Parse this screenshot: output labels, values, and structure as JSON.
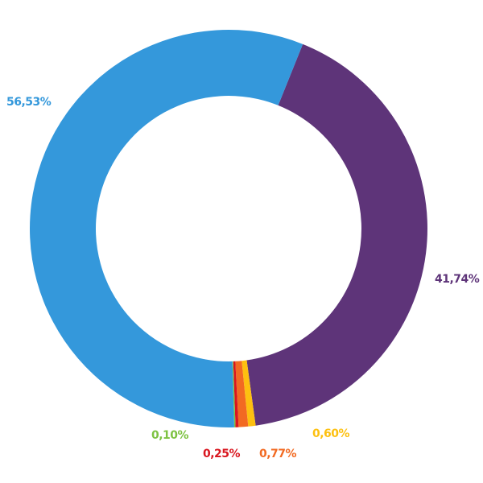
{
  "chart_data": {
    "type": "donut",
    "categories": [
      null,
      null,
      null,
      null,
      null,
      null
    ],
    "values": [
      41.74,
      0.6,
      0.77,
      0.25,
      0.1,
      56.53
    ],
    "value_labels": [
      "41,74%",
      "0,60%",
      "0,77%",
      "0,25%",
      "0,10%",
      "56,53%"
    ],
    "colors": [
      "#5e3479",
      "#fdc010",
      "#f26a22",
      "#d9161f",
      "#7dc242",
      "#3498db"
    ]
  }
}
